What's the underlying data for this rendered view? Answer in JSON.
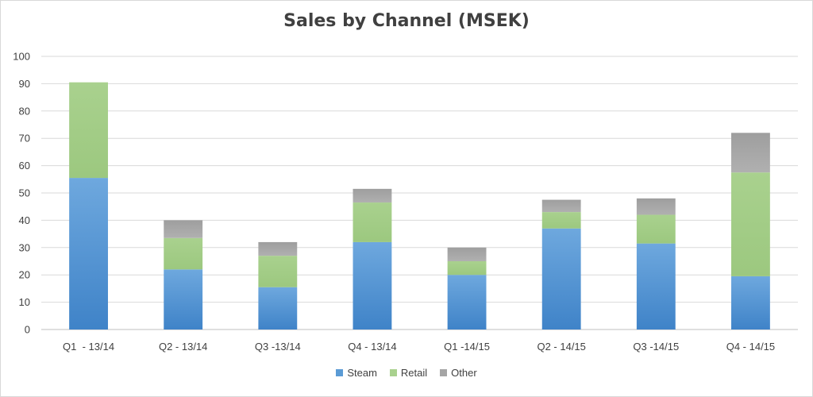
{
  "chart_data": {
    "type": "bar",
    "stacked": true,
    "title": "Sales by Channel (MSEK)",
    "xlabel": "",
    "ylabel": "",
    "ylim": [
      0,
      100
    ],
    "yticks": [
      0,
      10,
      20,
      30,
      40,
      50,
      60,
      70,
      80,
      90,
      100
    ],
    "grid": true,
    "legend": "bottom",
    "categories": [
      "Q1  - 13/14",
      "Q2 - 13/14",
      "Q3 -13/14",
      "Q4 - 13/14",
      "Q1 -14/15",
      "Q2 - 14/15",
      "Q3 -14/15",
      "Q4 - 14/15"
    ],
    "series": [
      {
        "name": "Steam",
        "color": "#5b9bd5",
        "values": [
          55.5,
          22,
          15.5,
          32,
          20,
          37,
          31.5,
          19.5
        ]
      },
      {
        "name": "Retail",
        "color": "#a9d18e",
        "values": [
          35,
          11.5,
          11.5,
          14.5,
          5,
          6,
          10.5,
          38
        ]
      },
      {
        "name": "Other",
        "color": "#a5a5a5",
        "values": [
          0,
          6.5,
          5,
          5,
          5,
          4.5,
          6,
          14.5
        ]
      }
    ]
  }
}
